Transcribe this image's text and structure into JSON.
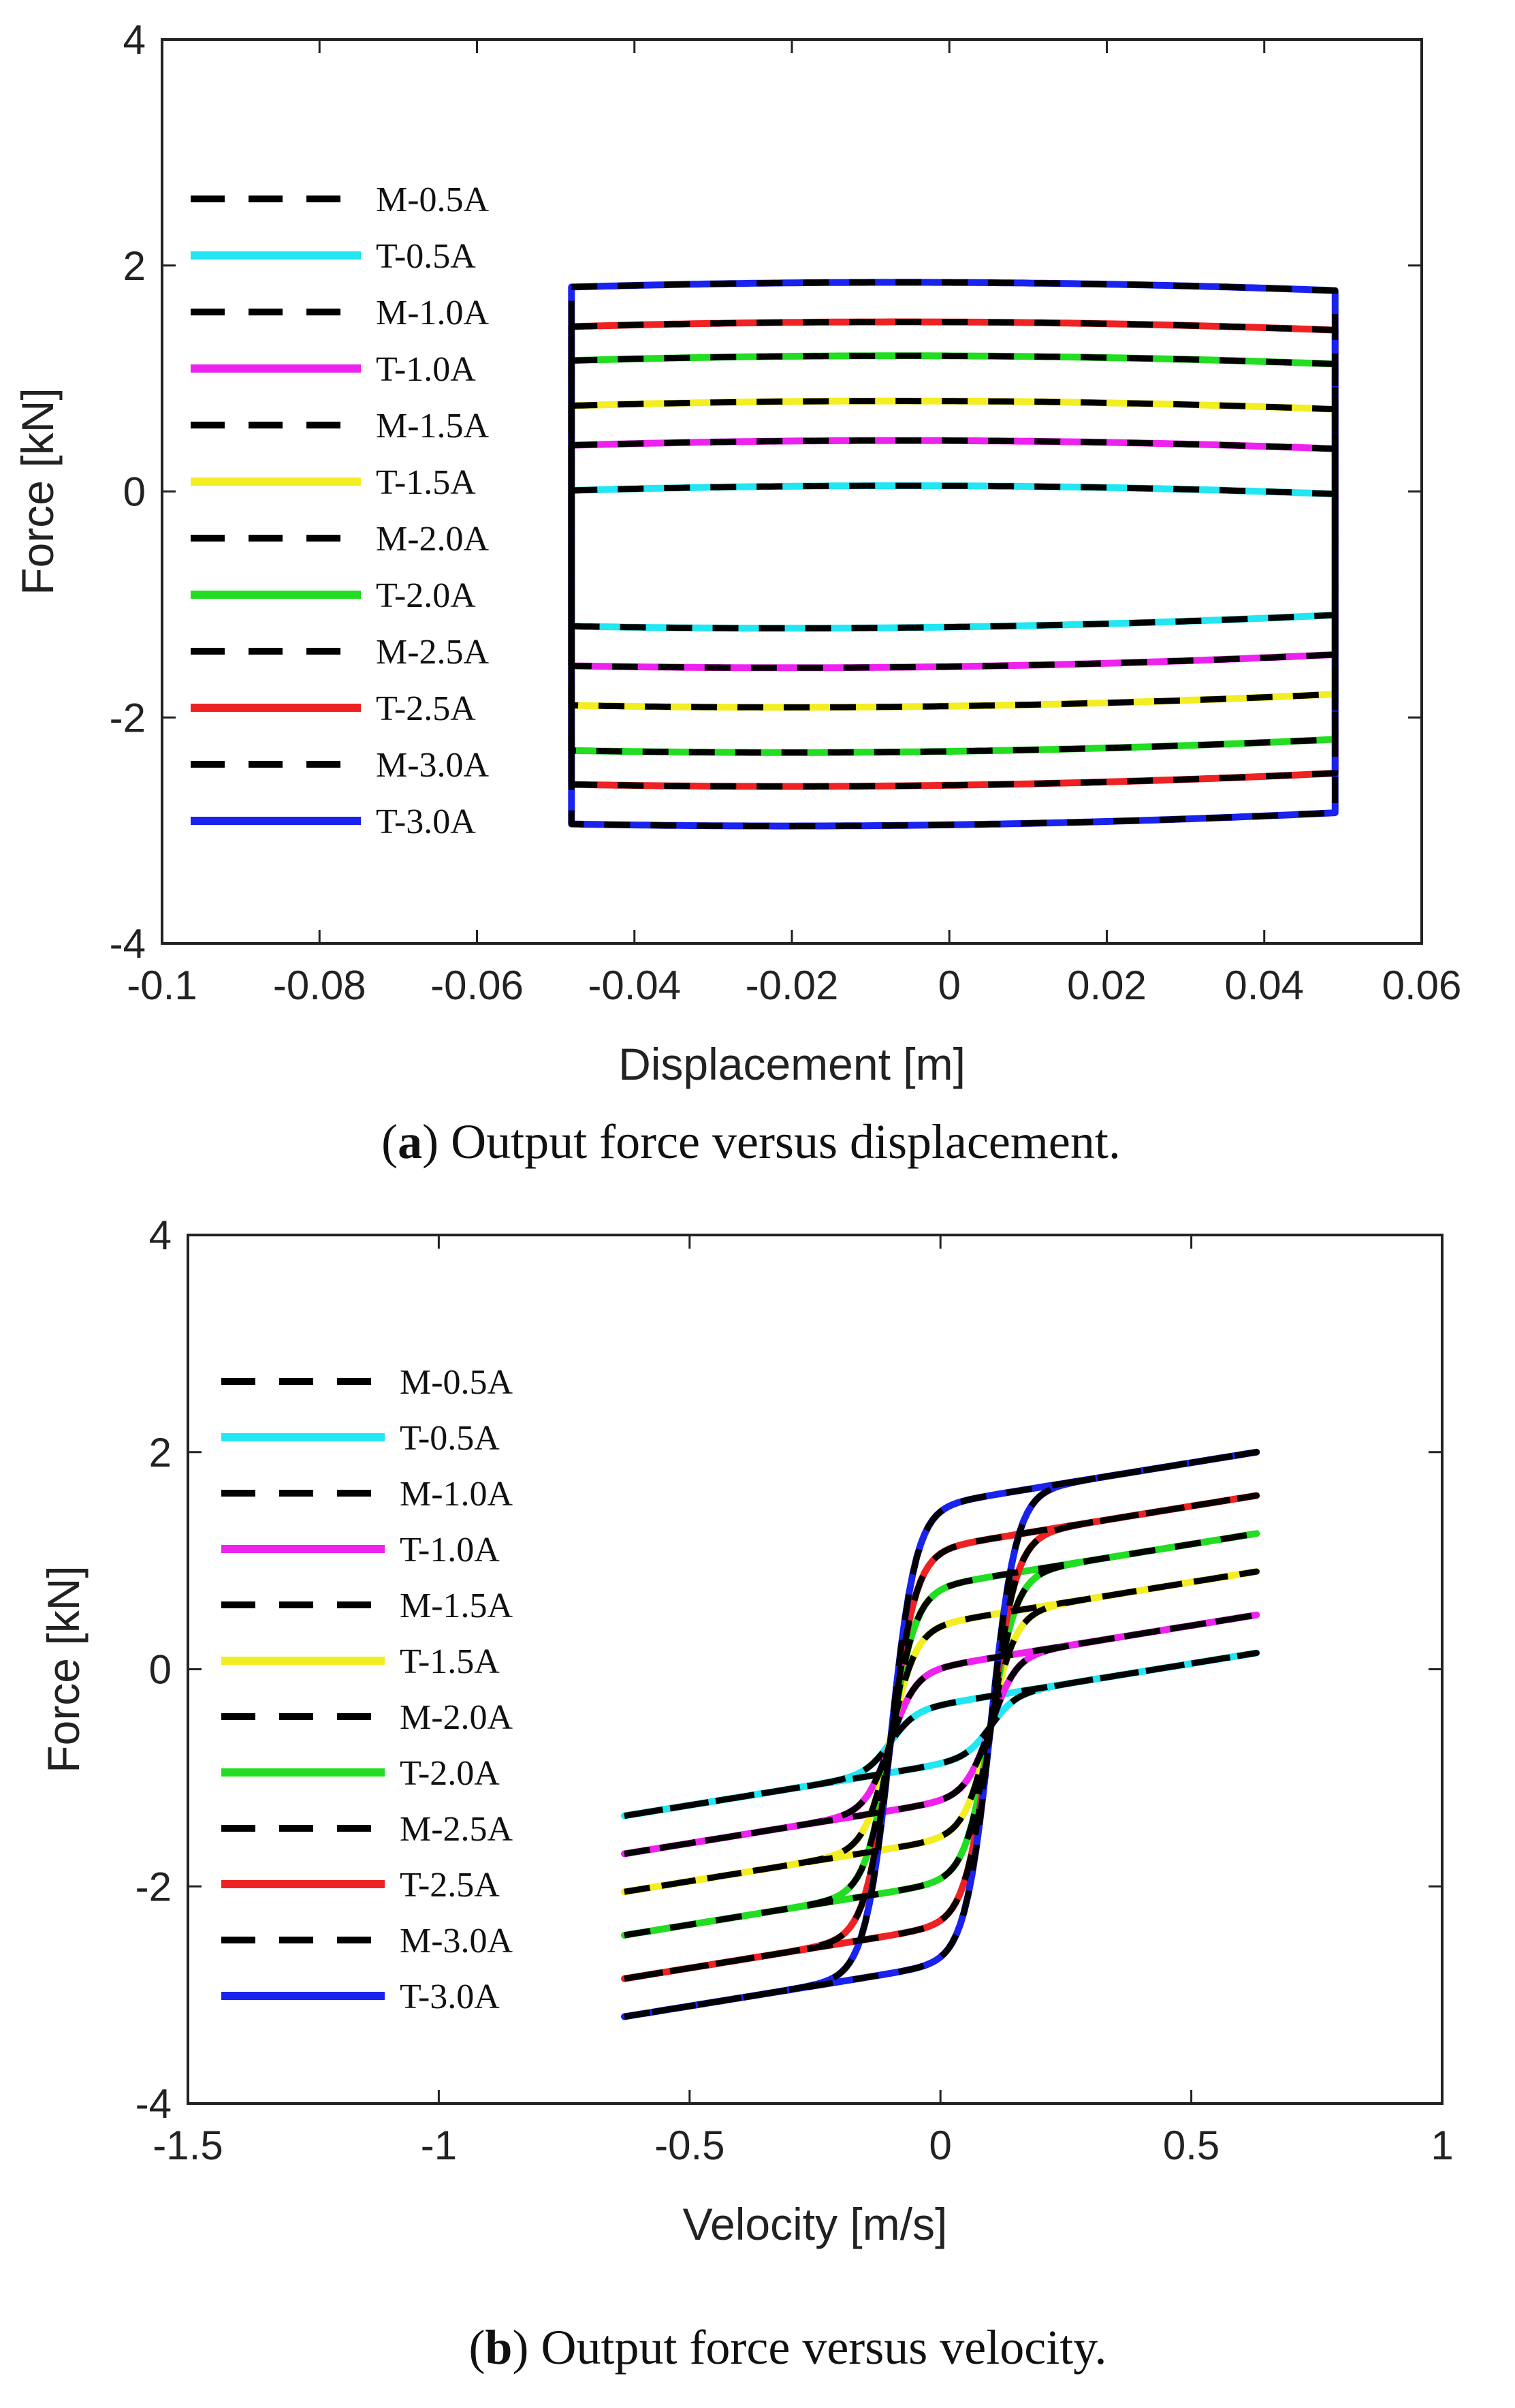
{
  "chart_data": [
    {
      "type": "line",
      "id": "a",
      "title": "",
      "xlabel": "Displacement [m]",
      "ylabel": "Force [kN]",
      "xlim": [
        -0.1,
        0.06
      ],
      "ylim": [
        -4,
        4
      ],
      "xticks": [
        -0.1,
        -0.08,
        -0.06,
        -0.04,
        -0.02,
        0,
        0.02,
        0.04,
        0.06
      ],
      "xtick_labels": [
        "-0.1",
        "-0.08",
        "-0.06",
        "-0.04",
        "-0.02",
        "0",
        "0.02",
        "0.04",
        "0.06"
      ],
      "yticks": [
        -4,
        -2,
        0,
        2,
        4
      ],
      "ytick_labels": [
        "-4",
        "-2",
        "0",
        "2",
        "4"
      ],
      "grid": false,
      "legend_position": "left",
      "caption_letter": "a",
      "caption_text": "Output force versus displacement.",
      "amplitude": 0.05,
      "series": [
        {
          "name": "M-0.5A",
          "kind": "measured",
          "color": "#000000",
          "upper_force": 0.05,
          "lower_force": -1.25
        },
        {
          "name": "T-0.5A",
          "kind": "theoretical",
          "color": "#22e6f2",
          "upper_force": 0.05,
          "lower_force": -1.25
        },
        {
          "name": "M-1.0A",
          "kind": "measured",
          "color": "#000000",
          "upper_force": 0.45,
          "lower_force": -1.6
        },
        {
          "name": "T-1.0A",
          "kind": "theoretical",
          "color": "#ee22ee",
          "upper_force": 0.45,
          "lower_force": -1.6
        },
        {
          "name": "M-1.5A",
          "kind": "measured",
          "color": "#000000",
          "upper_force": 0.8,
          "lower_force": -1.95
        },
        {
          "name": "T-1.5A",
          "kind": "theoretical",
          "color": "#f2ee22",
          "upper_force": 0.8,
          "lower_force": -1.95
        },
        {
          "name": "M-2.0A",
          "kind": "measured",
          "color": "#000000",
          "upper_force": 1.2,
          "lower_force": -2.35
        },
        {
          "name": "T-2.0A",
          "kind": "theoretical",
          "color": "#22dd22",
          "upper_force": 1.2,
          "lower_force": -2.35
        },
        {
          "name": "M-2.5A",
          "kind": "measured",
          "color": "#000000",
          "upper_force": 1.5,
          "lower_force": -2.65
        },
        {
          "name": "T-2.5A",
          "kind": "theoretical",
          "color": "#ee2222",
          "upper_force": 1.5,
          "lower_force": -2.65
        },
        {
          "name": "M-3.0A",
          "kind": "measured",
          "color": "#000000",
          "upper_force": 1.85,
          "lower_force": -3.0
        },
        {
          "name": "T-3.0A",
          "kind": "theoretical",
          "color": "#1a22ee",
          "upper_force": 1.85,
          "lower_force": -3.0
        }
      ]
    },
    {
      "type": "line",
      "id": "b",
      "title": "",
      "xlabel": "Velocity [m/s]",
      "ylabel": "Force [kN]",
      "xlim": [
        -1.5,
        1
      ],
      "ylim": [
        -4,
        4
      ],
      "xticks": [
        -1.5,
        -1,
        -0.5,
        0,
        0.5,
        1
      ],
      "xtick_labels": [
        "-1.5",
        "-1",
        "-0.5",
        "0",
        "0.5",
        "1"
      ],
      "yticks": [
        -4,
        -2,
        0,
        2,
        4
      ],
      "ytick_labels": [
        "-4",
        "-2",
        "0",
        "2",
        "4"
      ],
      "grid": false,
      "legend_position": "left",
      "caption_letter": "b",
      "caption_text": "Output force versus velocity.",
      "velocity_range": [
        -0.63,
        0.63
      ],
      "series": [
        {
          "name": "M-0.5A",
          "kind": "measured",
          "color": "#000000",
          "force_at_min_velocity": -1.35,
          "force_at_max_velocity": 0.15
        },
        {
          "name": "T-0.5A",
          "kind": "theoretical",
          "color": "#22e6f2",
          "force_at_min_velocity": -1.35,
          "force_at_max_velocity": 0.15
        },
        {
          "name": "M-1.0A",
          "kind": "measured",
          "color": "#000000",
          "force_at_min_velocity": -1.7,
          "force_at_max_velocity": 0.5
        },
        {
          "name": "T-1.0A",
          "kind": "theoretical",
          "color": "#ee22ee",
          "force_at_min_velocity": -1.7,
          "force_at_max_velocity": 0.5
        },
        {
          "name": "M-1.5A",
          "kind": "measured",
          "color": "#000000",
          "force_at_min_velocity": -2.05,
          "force_at_max_velocity": 0.9
        },
        {
          "name": "T-1.5A",
          "kind": "theoretical",
          "color": "#f2ee22",
          "force_at_min_velocity": -2.05,
          "force_at_max_velocity": 0.9
        },
        {
          "name": "M-2.0A",
          "kind": "measured",
          "color": "#000000",
          "force_at_min_velocity": -2.45,
          "force_at_max_velocity": 1.25
        },
        {
          "name": "T-2.0A",
          "kind": "theoretical",
          "color": "#22dd22",
          "force_at_min_velocity": -2.45,
          "force_at_max_velocity": 1.25
        },
        {
          "name": "M-2.5A",
          "kind": "measured",
          "color": "#000000",
          "force_at_min_velocity": -2.85,
          "force_at_max_velocity": 1.6
        },
        {
          "name": "T-2.5A",
          "kind": "theoretical",
          "color": "#ee2222",
          "force_at_min_velocity": -2.85,
          "force_at_max_velocity": 1.6
        },
        {
          "name": "M-3.0A",
          "kind": "measured",
          "color": "#000000",
          "force_at_min_velocity": -3.2,
          "force_at_max_velocity": 2.0
        },
        {
          "name": "T-3.0A",
          "kind": "theoretical",
          "color": "#1a22ee",
          "force_at_min_velocity": -3.2,
          "force_at_max_velocity": 2.0
        }
      ]
    }
  ]
}
